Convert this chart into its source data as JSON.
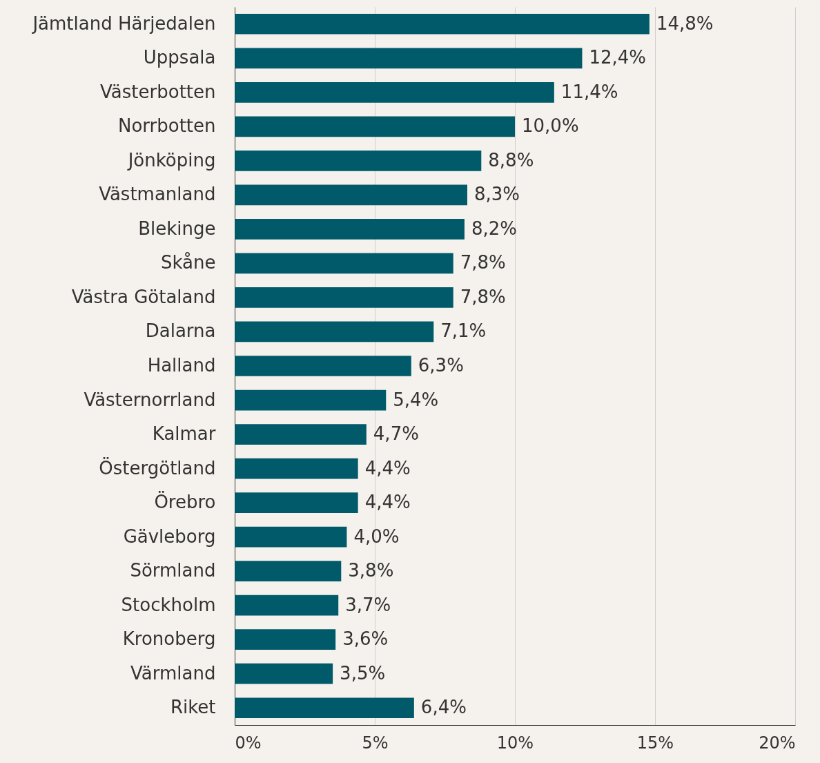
{
  "chart_data": {
    "type": "bar",
    "orientation": "horizontal",
    "categories": [
      "Jämtland Härjedalen",
      "Uppsala",
      "Västerbotten",
      "Norrbotten",
      "Jönköping",
      "Västmanland",
      "Blekinge",
      "Skåne",
      "Västra Götaland",
      "Dalarna",
      "Halland",
      "Västernorrland",
      "Kalmar",
      "Östergötland",
      "Örebro",
      "Gävleborg",
      "Sörmland",
      "Stockholm",
      "Kronoberg",
      "Värmland",
      "Riket"
    ],
    "values": [
      14.8,
      12.4,
      11.4,
      10.0,
      8.8,
      8.3,
      8.2,
      7.8,
      7.8,
      7.1,
      6.3,
      5.4,
      4.7,
      4.4,
      4.4,
      4.0,
      3.8,
      3.7,
      3.6,
      3.5,
      6.4
    ],
    "value_labels": [
      "14,8%",
      "12,4%",
      "11,4%",
      "10,0%",
      "8,8%",
      "8,3%",
      "8,2%",
      "7,8%",
      "7,8%",
      "7,1%",
      "6,3%",
      "5,4%",
      "4,7%",
      "4,4%",
      "4,4%",
      "4,0%",
      "3,8%",
      "3,7%",
      "3,6%",
      "3,5%",
      "6,4%"
    ],
    "color": "#005a6a",
    "xlim": [
      0,
      20
    ],
    "xticks": [
      {
        "value": 0,
        "label": "0%"
      },
      {
        "value": 5,
        "label": "5%"
      },
      {
        "value": 10,
        "label": "10%"
      },
      {
        "value": 15,
        "label": "15%"
      },
      {
        "value": 20,
        "label": "20%"
      }
    ],
    "grid": "x"
  }
}
